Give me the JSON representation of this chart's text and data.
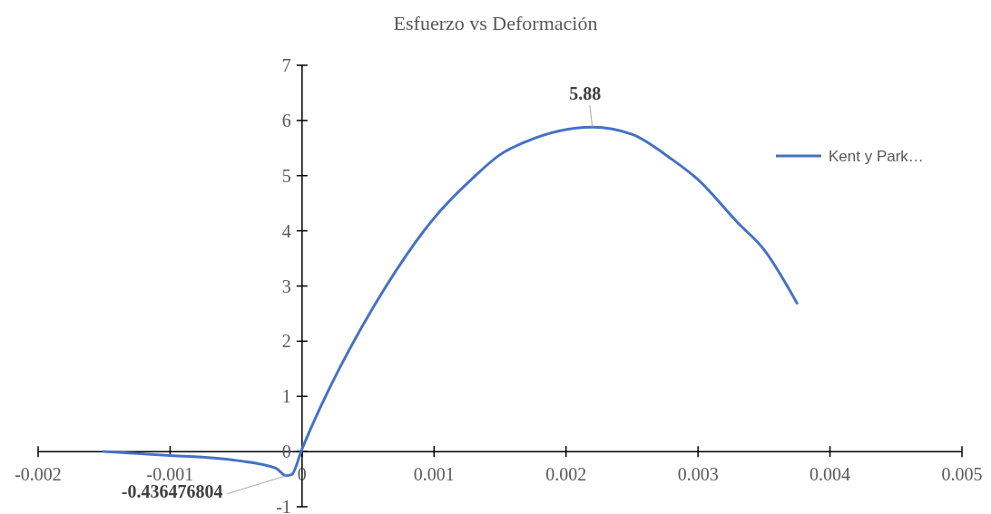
{
  "chart_data": {
    "type": "line",
    "title": "Esfuerzo vs Deformación",
    "series": [
      {
        "name": "Kent y Park…",
        "color": "#4472c4",
        "x": [
          -0.0015,
          -0.001,
          -0.0005,
          -0.0002,
          -0.00012,
          -8e-05,
          0,
          0.00063,
          0.001,
          0.0013,
          0.0015,
          0.0017,
          0.0022,
          0.0025,
          0.0028,
          0.003,
          0.0033,
          0.0035,
          0.00375
        ],
        "values": [
          0,
          -0.07,
          -0.16,
          -0.3,
          -0.436476804,
          -0.42,
          0.05,
          2.97,
          4.23,
          4.97,
          5.38,
          5.62,
          5.88,
          5.75,
          5.3,
          4.93,
          4.15,
          3.66,
          2.69
        ]
      }
    ],
    "xlim": [
      -0.002,
      0.005
    ],
    "xticks": [
      -0.002,
      -0.001,
      0,
      0.001,
      0.002,
      0.003,
      0.004,
      0.005
    ],
    "ylim": [
      -1,
      7
    ],
    "yticks": [
      -1,
      0,
      1,
      2,
      3,
      4,
      5,
      6,
      7
    ],
    "annotations": [
      {
        "text": "5.88",
        "x": 0.0022,
        "y": 5.88
      },
      {
        "text": "-0.436476804",
        "x": -0.00012,
        "y": -0.436476804
      }
    ],
    "legend": "right",
    "grid": false,
    "marker": "none",
    "line_style": "solid"
  }
}
